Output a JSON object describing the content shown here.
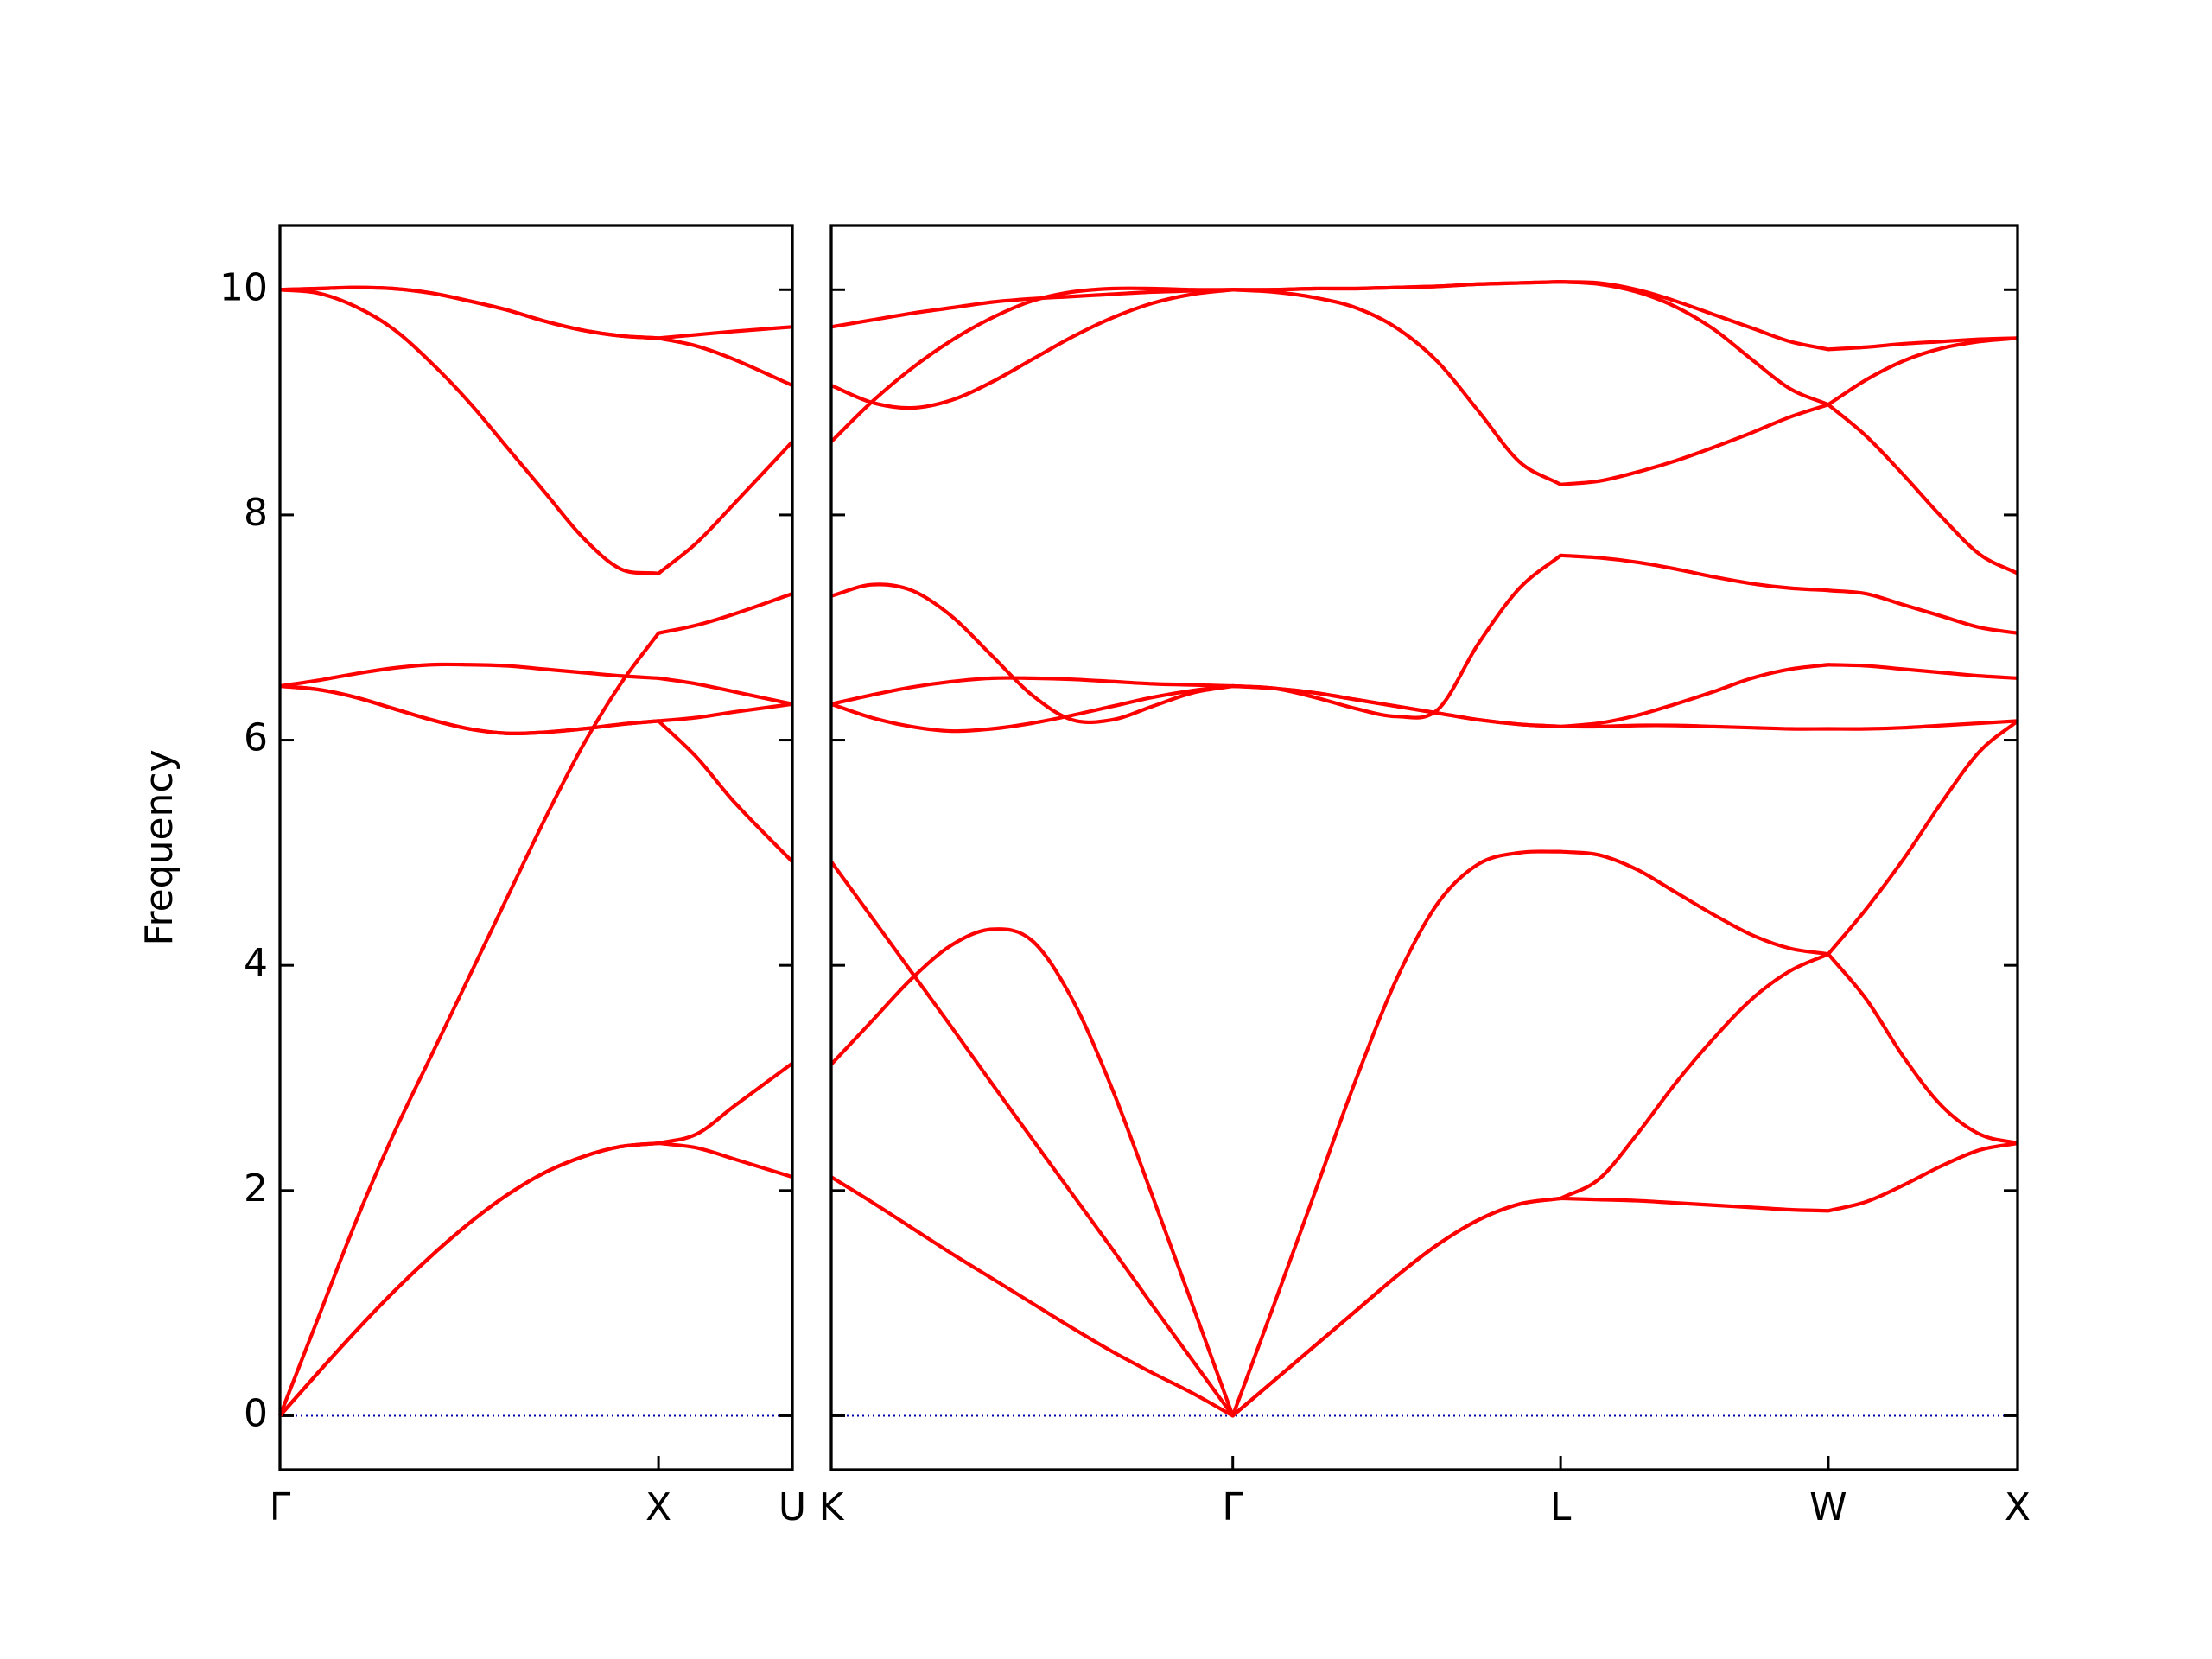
{
  "chart_data": [
    {
      "type": "line",
      "ylabel": "Frequency",
      "color": "#ff0000",
      "x": [
        0,
        0.1,
        0.2,
        0.3,
        0.4,
        0.5,
        0.6,
        0.7,
        0.8,
        0.9,
        1,
        1.1,
        1.2,
        1.3536
      ],
      "xlim": [
        0,
        1.3536
      ],
      "xticks": [
        {
          "value": 0,
          "label": "Γ"
        },
        {
          "value": 1,
          "label": "X"
        },
        {
          "value": 1.3536,
          "label": "U"
        }
      ],
      "ylim": [
        -0.48,
        10.57
      ],
      "yticks": [
        0,
        2,
        4,
        6,
        8,
        10
      ],
      "series": [
        {
          "values": [
            0,
            0.38,
            0.75,
            1.1,
            1.42,
            1.71,
            1.96,
            2.16,
            2.3,
            2.39,
            2.42,
            2.38,
            2.28,
            2.12
          ]
        },
        {
          "values": [
            0,
            0.38,
            0.75,
            1.1,
            1.42,
            1.71,
            1.96,
            2.16,
            2.3,
            2.39,
            2.42,
            2.5,
            2.75,
            3.13
          ]
        },
        {
          "values": [
            0,
            0.86,
            1.72,
            2.5,
            3.2,
            3.9,
            4.6,
            5.3,
            5.95,
            6.5,
            6.95,
            7.02,
            7.12,
            7.3
          ]
        },
        {
          "values": [
            6.48,
            6.45,
            6.38,
            6.28,
            6.18,
            6.1,
            6.06,
            6.07,
            6.1,
            6.14,
            6.17,
            6.2,
            6.25,
            6.32
          ]
        },
        {
          "values": [
            6.48,
            6.45,
            6.38,
            6.28,
            6.18,
            6.1,
            6.06,
            6.07,
            6.1,
            6.14,
            6.17,
            5.85,
            5.45,
            4.92
          ]
        },
        {
          "values": [
            6.48,
            6.53,
            6.59,
            6.64,
            6.67,
            6.67,
            6.66,
            6.63,
            6.6,
            6.57,
            6.55,
            6.5,
            6.43,
            6.32
          ]
        },
        {
          "values": [
            10,
            9.97,
            9.85,
            9.65,
            9.35,
            9.0,
            8.6,
            8.2,
            7.8,
            7.52,
            7.48,
            7.75,
            8.1,
            8.65
          ]
        },
        {
          "values": [
            10,
            10.01,
            10.02,
            10.01,
            9.97,
            9.9,
            9.82,
            9.72,
            9.64,
            9.59,
            9.57,
            9.6,
            9.63,
            9.67
          ]
        },
        {
          "values": [
            10,
            10.01,
            10.02,
            10.01,
            9.97,
            9.9,
            9.82,
            9.72,
            9.64,
            9.59,
            9.57,
            9.5,
            9.38,
            9.15
          ]
        }
      ]
    },
    {
      "type": "line",
      "color": "#ff0000",
      "x": [
        1.3536,
        1.4597,
        1.5657,
        1.6718,
        1.7779,
        1.8839,
        1.99,
        2.096,
        2.2021,
        2.3082,
        2.4142,
        2.5225,
        2.6307,
        2.739,
        2.8472,
        2.9555,
        3.0637,
        3.172,
        3.2802,
        3.3812,
        3.4822,
        3.5832,
        3.6842,
        3.7852,
        3.8863,
        3.9873,
        4.0873,
        4.1873,
        4.2873,
        4.3873,
        4.4873
      ],
      "xlim": [
        1.3536,
        4.4873
      ],
      "xticks": [
        {
          "value": 1.3536,
          "label": "K"
        },
        {
          "value": 2.4142,
          "label": "Γ"
        },
        {
          "value": 3.2802,
          "label": "L"
        },
        {
          "value": 3.9873,
          "label": "W"
        },
        {
          "value": 4.4873,
          "label": "X"
        }
      ],
      "ylim": [
        -0.48,
        10.57
      ],
      "yticks": [
        0,
        2,
        4,
        6,
        8,
        10
      ],
      "series": [
        {
          "values": [
            2.12,
            1.9,
            1.67,
            1.44,
            1.22,
            1.0,
            0.78,
            0.57,
            0.38,
            0.2,
            0,
            0.31,
            0.62,
            0.93,
            1.24,
            1.52,
            1.74,
            1.88,
            1.93,
            1.92,
            1.91,
            1.89,
            1.87,
            1.85,
            1.83,
            1.82,
            1.9,
            2.05,
            2.22,
            2.36,
            2.42
          ]
        },
        {
          "values": [
            3.12,
            3.5,
            3.88,
            4.18,
            4.32,
            4.22,
            3.7,
            2.9,
            1.95,
            0.98,
            0,
            0.31,
            0.62,
            0.93,
            1.24,
            1.52,
            1.74,
            1.88,
            1.93,
            2.1,
            2.5,
            2.95,
            3.35,
            3.7,
            3.95,
            4.1,
            3.7,
            3.18,
            2.75,
            2.5,
            2.42
          ]
        },
        {
          "values": [
            4.92,
            4.43,
            3.94,
            3.45,
            2.95,
            2.46,
            1.97,
            1.48,
            0.98,
            0.49,
            0,
            0.98,
            1.98,
            2.98,
            3.88,
            4.55,
            4.9,
            5.0,
            5.01,
            4.98,
            4.85,
            4.65,
            4.45,
            4.27,
            4.15,
            4.1,
            4.5,
            4.95,
            5.45,
            5.9,
            6.17
          ]
        },
        {
          "values": [
            6.32,
            6.2,
            6.12,
            6.08,
            6.1,
            6.15,
            6.22,
            6.3,
            6.38,
            6.44,
            6.48,
            6.46,
            6.42,
            6.36,
            6.3,
            6.24,
            6.18,
            6.14,
            6.12,
            6.12,
            6.13,
            6.13,
            6.12,
            6.11,
            6.1,
            6.1,
            6.1,
            6.11,
            6.13,
            6.15,
            6.17
          ]
        },
        {
          "values": [
            6.32,
            6.4,
            6.47,
            6.52,
            6.55,
            6.55,
            6.54,
            6.52,
            6.5,
            6.49,
            6.48,
            6.46,
            6.42,
            6.36,
            6.3,
            6.24,
            6.18,
            6.14,
            6.12,
            6.15,
            6.22,
            6.32,
            6.43,
            6.55,
            6.63,
            6.67,
            6.66,
            6.63,
            6.6,
            6.57,
            6.55
          ]
        },
        {
          "values": [
            7.28,
            7.38,
            7.33,
            7.1,
            6.75,
            6.4,
            6.18,
            6.18,
            6.3,
            6.42,
            6.48,
            6.46,
            6.38,
            6.28,
            6.21,
            6.27,
            6.86,
            7.35,
            7.64,
            7.62,
            7.58,
            7.52,
            7.45,
            7.39,
            7.35,
            7.33,
            7.3,
            7.2,
            7.1,
            7.0,
            6.95
          ]
        },
        {
          "values": [
            8.65,
            9.0,
            9.3,
            9.55,
            9.75,
            9.9,
            9.98,
            10.01,
            10.01,
            10.0,
            10.0,
            9.98,
            9.93,
            9.84,
            9.66,
            9.36,
            8.92,
            8.47,
            8.27,
            8.3,
            8.38,
            8.48,
            8.6,
            8.73,
            8.87,
            8.98,
            9.2,
            9.37,
            9.48,
            9.54,
            9.57
          ]
        },
        {
          "values": [
            9.15,
            9.0,
            8.95,
            9.02,
            9.18,
            9.38,
            9.58,
            9.75,
            9.88,
            9.96,
            10.0,
            10.0,
            10.01,
            10.01,
            10.02,
            10.03,
            10.05,
            10.06,
            10.07,
            10.05,
            9.98,
            9.85,
            9.65,
            9.38,
            9.12,
            8.98,
            8.7,
            8.35,
            7.98,
            7.65,
            7.48
          ]
        },
        {
          "values": [
            9.67,
            9.73,
            9.79,
            9.84,
            9.89,
            9.92,
            9.94,
            9.96,
            9.98,
            9.99,
            10.0,
            10.0,
            10.01,
            10.01,
            10.02,
            10.03,
            10.05,
            10.06,
            10.07,
            10.06,
            10.0,
            9.9,
            9.78,
            9.66,
            9.54,
            9.47,
            9.49,
            9.52,
            9.54,
            9.56,
            9.57
          ]
        }
      ]
    }
  ]
}
